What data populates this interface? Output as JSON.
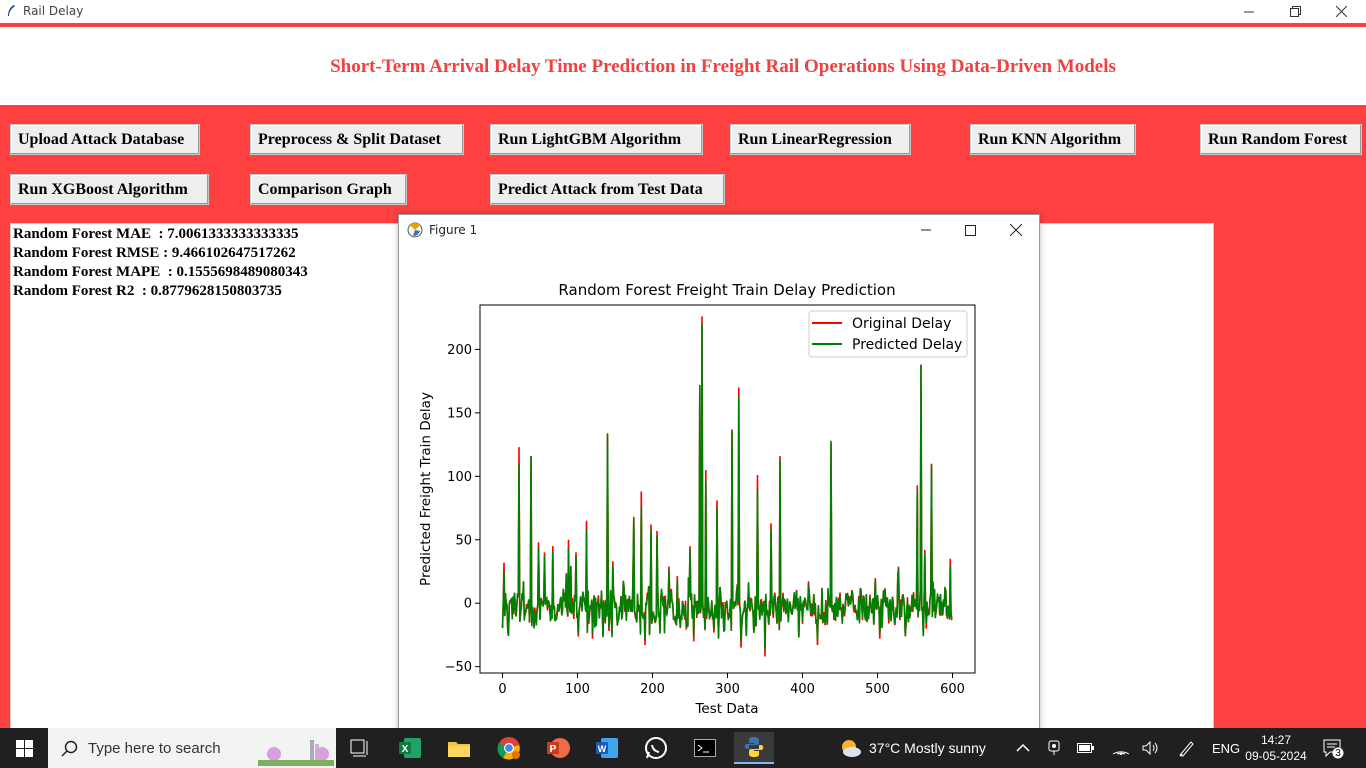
{
  "window": {
    "title": "Rail Delay"
  },
  "header": {
    "title": "Short-Term Arrival Delay Time Prediction in Freight Rail Operations Using Data-Driven Models"
  },
  "buttons": {
    "upload": "Upload Attack Database",
    "preprocess": "Preprocess & Split Dataset",
    "lightgbm": "Run LightGBM Algorithm",
    "linear": "Run LinearRegression",
    "knn": "Run KNN Algorithm",
    "random_forest": "Run Random Forest",
    "xgboost": "Run XGBoost Algorithm",
    "comparison": "Comparison Graph",
    "predict": "Predict Attack from Test Data"
  },
  "output": {
    "lines": [
      "Random Forest MAE  : 7.0061333333333335",
      "Random Forest RMSE : 9.466102647517262",
      "Random Forest MAPE  : 0.1555698489080343",
      "Random Forest R2  : 0.8779628150803735"
    ]
  },
  "figure": {
    "window_title": "Figure 1"
  },
  "chart_data": {
    "type": "line",
    "title": "Random Forest Freight Train Delay Prediction",
    "xlabel": "Test Data",
    "ylabel": "Predicted Freight Train Delay",
    "xlim": [
      -30,
      630
    ],
    "ylim": [
      -55,
      235
    ],
    "xticks": [
      0,
      100,
      200,
      300,
      400,
      500,
      600
    ],
    "yticks": [
      -50,
      0,
      50,
      100,
      150,
      200
    ],
    "legend_position": "top-right",
    "series": [
      {
        "name": "Original Delay",
        "color": "#ff0000",
        "peaks": [
          [
            2,
            32
          ],
          [
            22,
            123
          ],
          [
            38,
            116
          ],
          [
            48,
            48
          ],
          [
            56,
            40
          ],
          [
            67,
            45
          ],
          [
            88,
            50
          ],
          [
            98,
            40
          ],
          [
            112,
            65
          ],
          [
            140,
            133
          ],
          [
            147,
            33
          ],
          [
            175,
            68
          ],
          [
            185,
            88
          ],
          [
            198,
            62
          ],
          [
            206,
            57
          ],
          [
            250,
            45
          ],
          [
            263,
            170
          ],
          [
            266,
            226
          ],
          [
            271,
            105
          ],
          [
            286,
            81
          ],
          [
            306,
            137
          ],
          [
            315,
            170
          ],
          [
            340,
            101
          ],
          [
            358,
            63
          ],
          [
            370,
            116
          ],
          [
            438,
            126
          ],
          [
            553,
            93
          ],
          [
            558,
            188
          ],
          [
            563,
            42
          ],
          [
            572,
            110
          ],
          [
            565,
            -20
          ],
          [
            597,
            35
          ],
          [
            120,
            -28
          ],
          [
            190,
            -33
          ],
          [
            255,
            -30
          ],
          [
            318,
            -35
          ],
          [
            350,
            -42
          ],
          [
            420,
            -33
          ],
          [
            503,
            -28
          ]
        ]
      },
      {
        "name": "Predicted Delay",
        "color": "#008000",
        "peaks": [
          [
            2,
            25
          ],
          [
            22,
            110
          ],
          [
            38,
            116
          ],
          [
            48,
            44
          ],
          [
            56,
            37
          ],
          [
            67,
            41
          ],
          [
            88,
            44
          ],
          [
            98,
            37
          ],
          [
            112,
            58
          ],
          [
            140,
            134
          ],
          [
            147,
            30
          ],
          [
            175,
            67
          ],
          [
            185,
            76
          ],
          [
            198,
            58
          ],
          [
            206,
            53
          ],
          [
            250,
            43
          ],
          [
            263,
            172
          ],
          [
            266,
            220
          ],
          [
            271,
            97
          ],
          [
            286,
            75
          ],
          [
            306,
            136
          ],
          [
            315,
            163
          ],
          [
            340,
            90
          ],
          [
            358,
            58
          ],
          [
            370,
            113
          ],
          [
            438,
            128
          ],
          [
            553,
            90
          ],
          [
            558,
            188
          ],
          [
            563,
            39
          ],
          [
            572,
            109
          ],
          [
            565,
            -16
          ],
          [
            597,
            30
          ],
          [
            120,
            -24
          ],
          [
            190,
            -29
          ],
          [
            255,
            -26
          ],
          [
            318,
            -30
          ],
          [
            350,
            -36
          ],
          [
            420,
            -29
          ],
          [
            503,
            -24
          ]
        ]
      }
    ]
  },
  "taskbar": {
    "search_placeholder": "Type here to search",
    "weather": "37°C  Mostly sunny",
    "language": "ENG",
    "time": "14:27",
    "date": "09-05-2024",
    "notifications": "3"
  }
}
